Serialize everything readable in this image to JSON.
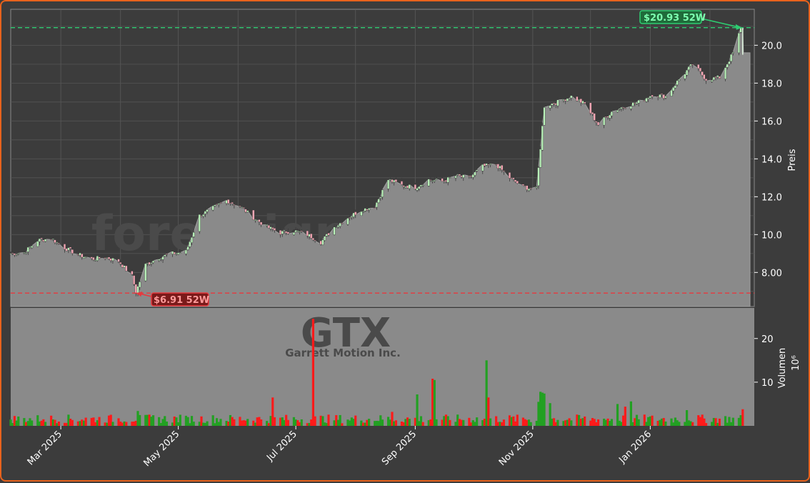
{
  "chart_data": {
    "type": "candlestick",
    "watermark": "forexsignale.trade",
    "ticker": "GTX",
    "company": "Garrett Motion Inc.",
    "price_axis_label": "Preis",
    "volume_axis_label": "Volumen",
    "volume_unit_label": "10⁶",
    "price_ylim": [
      6.2,
      21.9
    ],
    "volume_ylim": [
      0,
      27
    ],
    "price_ticks": [
      "8.00",
      "10.0",
      "12.0",
      "14.0",
      "16.0",
      "18.0",
      "20.0"
    ],
    "volume_ticks": [
      "10",
      "20"
    ],
    "x_ticks": [
      "Mar 2025",
      "May 2025",
      "Jul 2025",
      "Sep 2025",
      "Nov 2025",
      "Jan 2026"
    ],
    "high_52w": {
      "label": "$20.93 52W",
      "value": 20.93,
      "color": "#2ecc71"
    },
    "low_52w": {
      "label": "$6.91 52W",
      "value": 6.91,
      "color": "#e8383d"
    },
    "colors": {
      "up": "#22a022",
      "down": "#ff1a1a",
      "area": "#8a8a8a",
      "candle_up": "#b8f0b8",
      "candle_down": "#f4a6b4"
    },
    "price_keypoints": [
      [
        "2025-02-03",
        9.0
      ],
      [
        "2025-02-10",
        9.05
      ],
      [
        "2025-02-17",
        9.7
      ],
      [
        "2025-02-24",
        9.8
      ],
      [
        "2025-03-03",
        9.3
      ],
      [
        "2025-03-10",
        8.95
      ],
      [
        "2025-03-17",
        8.7
      ],
      [
        "2025-03-24",
        8.8
      ],
      [
        "2025-03-31",
        8.6
      ],
      [
        "2025-04-07",
        7.8
      ],
      [
        "2025-04-09",
        6.95
      ],
      [
        "2025-04-14",
        8.4
      ],
      [
        "2025-04-21",
        8.8
      ],
      [
        "2025-04-28",
        9.0
      ],
      [
        "2025-05-05",
        9.1
      ],
      [
        "2025-05-12",
        11.0
      ],
      [
        "2025-05-19",
        11.4
      ],
      [
        "2025-05-26",
        11.8
      ],
      [
        "2025-06-02",
        11.5
      ],
      [
        "2025-06-09",
        10.9
      ],
      [
        "2025-06-16",
        10.4
      ],
      [
        "2025-06-23",
        10.1
      ],
      [
        "2025-06-30",
        10.2
      ],
      [
        "2025-07-07",
        10.0
      ],
      [
        "2025-07-14",
        9.6
      ],
      [
        "2025-07-21",
        10.4
      ],
      [
        "2025-07-28",
        10.9
      ],
      [
        "2025-08-04",
        11.3
      ],
      [
        "2025-08-11",
        11.5
      ],
      [
        "2025-08-18",
        12.9
      ],
      [
        "2025-08-25",
        12.6
      ],
      [
        "2025-09-01",
        12.5
      ],
      [
        "2025-09-08",
        12.9
      ],
      [
        "2025-09-15",
        12.8
      ],
      [
        "2025-09-22",
        13.1
      ],
      [
        "2025-09-29",
        13.0
      ],
      [
        "2025-10-06",
        13.6
      ],
      [
        "2025-10-13",
        13.7
      ],
      [
        "2025-10-20",
        13.0
      ],
      [
        "2025-10-27",
        12.5
      ],
      [
        "2025-11-03",
        12.4
      ],
      [
        "2025-11-07",
        16.8
      ],
      [
        "2025-11-14",
        17.0
      ],
      [
        "2025-11-21",
        17.3
      ],
      [
        "2025-11-28",
        16.9
      ],
      [
        "2025-12-05",
        15.8
      ],
      [
        "2025-12-12",
        16.5
      ],
      [
        "2025-12-19",
        16.8
      ],
      [
        "2025-12-26",
        17.0
      ],
      [
        "2026-01-02",
        17.4
      ],
      [
        "2026-01-09",
        17.3
      ],
      [
        "2026-01-16",
        18.2
      ],
      [
        "2026-01-23",
        19.0
      ],
      [
        "2026-01-30",
        18.2
      ],
      [
        "2026-02-06",
        18.3
      ],
      [
        "2026-02-13",
        19.6
      ],
      [
        "2026-02-17",
        20.9
      ]
    ],
    "volume_spikes": [
      [
        "2025-02-20",
        1.5
      ],
      [
        "2025-04-10",
        3.4
      ],
      [
        "2025-04-14",
        2.5
      ],
      [
        "2025-05-06",
        2.0
      ],
      [
        "2025-06-19",
        6.5
      ],
      [
        "2025-07-10",
        24.5
      ],
      [
        "2025-08-20",
        3.2
      ],
      [
        "2025-09-02",
        7.2
      ],
      [
        "2025-09-10",
        10.8
      ],
      [
        "2025-09-11",
        10.5
      ],
      [
        "2025-10-08",
        15.0
      ],
      [
        "2025-10-09",
        6.5
      ],
      [
        "2025-11-04",
        5.5
      ],
      [
        "2025-11-05",
        7.8
      ],
      [
        "2025-11-06",
        7.6
      ],
      [
        "2025-11-07",
        7.4
      ],
      [
        "2025-11-10",
        5.2
      ],
      [
        "2025-12-15",
        5.0
      ],
      [
        "2025-12-19",
        4.4
      ],
      [
        "2025-12-22",
        5.6
      ],
      [
        "2026-01-20",
        3.6
      ],
      [
        "2026-02-18",
        3.8
      ]
    ]
  }
}
